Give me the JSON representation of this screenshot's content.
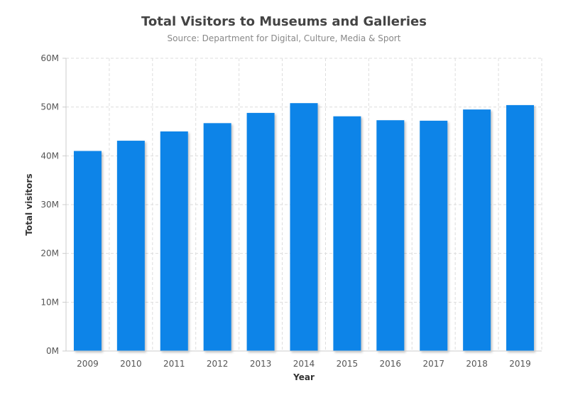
{
  "chart_data": {
    "type": "bar",
    "title": "Total Visitors to Museums and Galleries",
    "subtitle": "Source: Department for Digital, Culture, Media & Sport",
    "xlabel": "Year",
    "ylabel": "Total visitors",
    "categories": [
      "2009",
      "2010",
      "2011",
      "2012",
      "2013",
      "2014",
      "2015",
      "2016",
      "2017",
      "2018",
      "2019"
    ],
    "values": [
      41000000,
      43100000,
      45000000,
      46700000,
      48800000,
      50800000,
      48100000,
      47300000,
      47200000,
      49500000,
      50400000
    ],
    "ylim": [
      0,
      60000000
    ],
    "yticks": [
      0,
      10000000,
      20000000,
      30000000,
      40000000,
      50000000,
      60000000
    ],
    "ytick_labels": [
      "0M",
      "10M",
      "20M",
      "30M",
      "40M",
      "50M",
      "60M"
    ],
    "grid": true,
    "grid_style": "dashed",
    "legend": false,
    "colors": {
      "bar": "#0a84e8",
      "grid": "#dddddd",
      "axis": "#cccccc"
    }
  }
}
